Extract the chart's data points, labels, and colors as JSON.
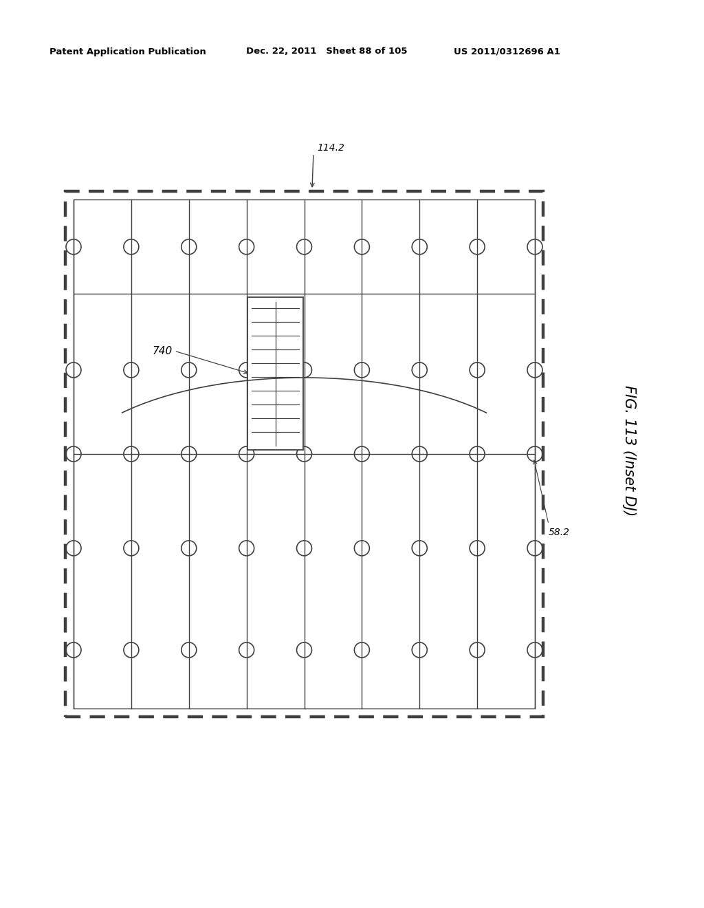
{
  "header_left": "Patent Application Publication",
  "header_mid": "Dec. 22, 2011   Sheet 88 of 105",
  "header_right": "US 2011/0312696 A1",
  "fig_label": "FIG. 113 (Inset DJ)",
  "label_114_2": "114.2",
  "label_58_2": "58.2",
  "label_740": "740",
  "background": "#ffffff",
  "line_color": "#404040"
}
